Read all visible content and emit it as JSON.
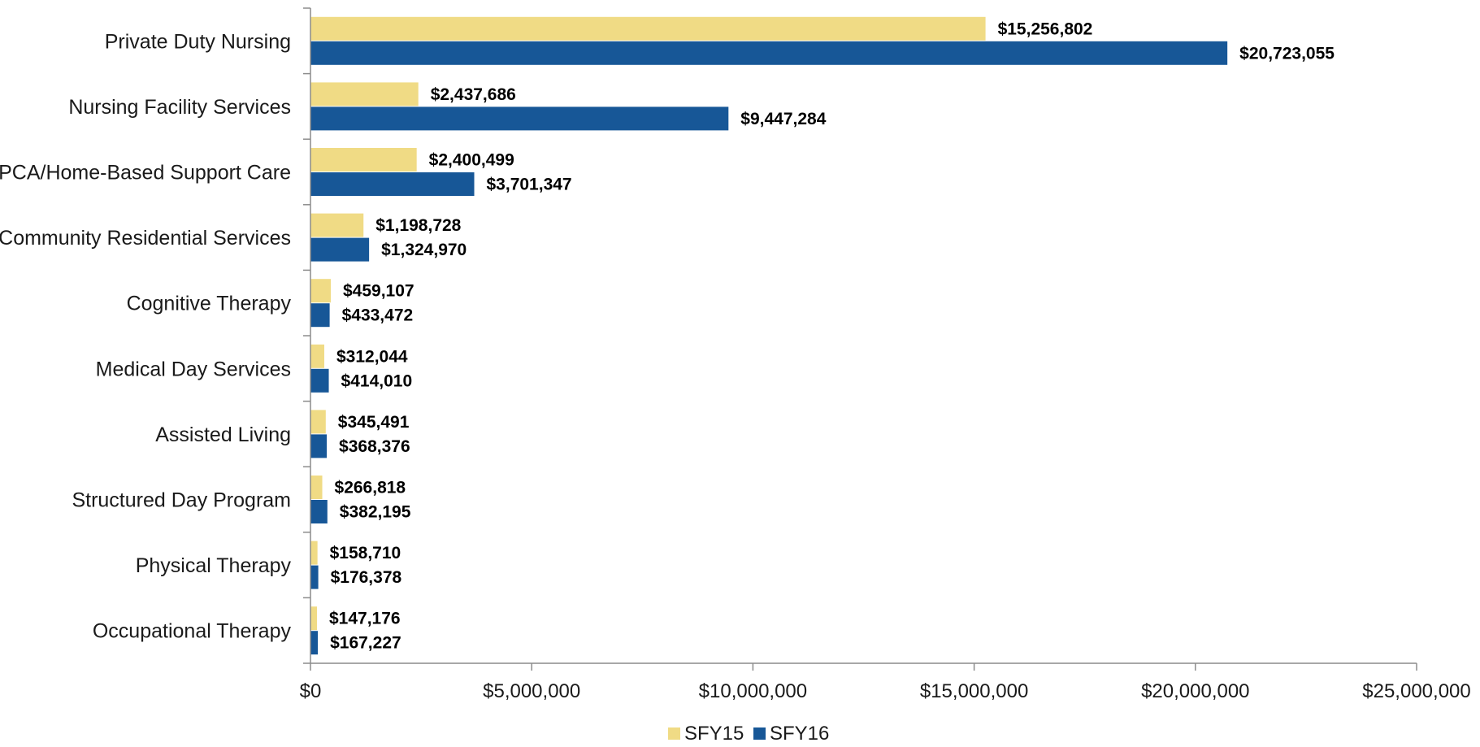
{
  "chart_data": {
    "type": "bar",
    "orientation": "horizontal",
    "categories": [
      "Private Duty Nursing",
      "Nursing Facility Services",
      "PCA/Home-Based Support Care",
      "Community Residential Services",
      "Cognitive Therapy",
      "Medical Day Services",
      "Assisted Living",
      "Structured Day Program",
      "Physical Therapy",
      "Occupational Therapy"
    ],
    "series": [
      {
        "name": "SFY15",
        "color": "#f0db85",
        "values": [
          15256802,
          2437686,
          2400499,
          1198728,
          459107,
          312044,
          345491,
          266818,
          158710,
          147176
        ],
        "labels": [
          "$15,256,802",
          "$2,437,686",
          "$2,400,499",
          "$1,198,728",
          "$459,107",
          "$312,044",
          "$345,491",
          "$266,818",
          "$158,710",
          "$147,176"
        ]
      },
      {
        "name": "SFY16",
        "color": "#175797",
        "values": [
          20723055,
          9447284,
          3701347,
          1324970,
          433472,
          414010,
          368376,
          382195,
          176378,
          167227
        ],
        "labels": [
          "$20,723,055",
          "$9,447,284",
          "$3,701,347",
          "$1,324,970",
          "$433,472",
          "$414,010",
          "$368,376",
          "$382,195",
          "$176,378",
          "$167,227"
        ]
      }
    ],
    "xlim": [
      0,
      25000000
    ],
    "xticks": [
      0,
      5000000,
      10000000,
      15000000,
      20000000,
      25000000
    ],
    "xtick_labels": [
      "$0",
      "$5,000,000",
      "$10,000,000",
      "$15,000,000",
      "$20,000,000",
      "$25,000,000"
    ],
    "title": "",
    "xlabel": "",
    "ylabel": "",
    "grid": false,
    "legend_position": "bottom"
  }
}
